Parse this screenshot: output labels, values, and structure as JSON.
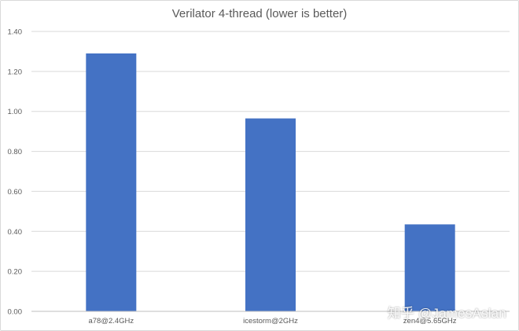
{
  "chart_data": {
    "type": "bar",
    "title": "Verilator 4-thread (lower is better)",
    "categories": [
      "a78@2.4GHz",
      "icestorm@2GHz",
      "zen4@5.65GHz"
    ],
    "values": [
      1.29,
      0.965,
      0.435
    ],
    "ylim": [
      0,
      1.4
    ],
    "yticks": [
      "0.00",
      "0.20",
      "0.40",
      "0.60",
      "0.80",
      "1.00",
      "1.20",
      "1.40"
    ],
    "grid": true,
    "legend": "none",
    "bar_color": "#4472c4",
    "grid_color": "#d9d9d9",
    "text_color": "#595959"
  },
  "watermark": "知乎 @JamesAslan"
}
